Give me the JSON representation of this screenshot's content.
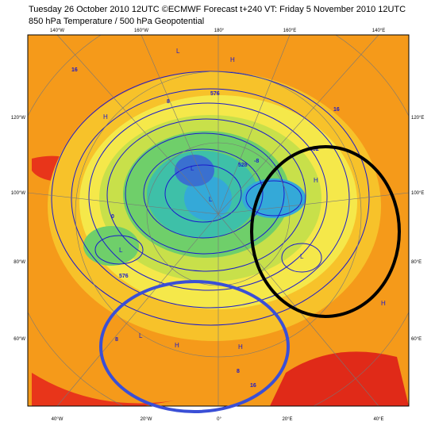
{
  "header": {
    "title": "Tuesday 26 October 2010 12UTC ©ECMWF Forecast t+240 VT: Friday 5 November 2010 12UTC",
    "subtitle": "850 hPa Temperature / 500 hPa Geopotential"
  },
  "map": {
    "top_labels": [
      "140°W",
      "160°W",
      "180°",
      "160°E",
      "140°E"
    ],
    "left_labels": [
      "120°W",
      "100°W",
      "80°W",
      "60°W"
    ],
    "right_labels": [
      "120°E",
      "100°E",
      "80°E",
      "60°E"
    ],
    "bottom_labels": [
      "40°W",
      "20°W",
      "0°",
      "20°E",
      "40°E"
    ],
    "contour_labels": [
      "576",
      "552",
      "528",
      "576",
      "16",
      "8",
      "-8",
      "0",
      "8",
      "16",
      "16",
      "8"
    ],
    "pressure_labels": [
      "L",
      "H",
      "L",
      "H",
      "L",
      "L",
      "H",
      "H",
      "L",
      "L",
      "H",
      "H"
    ]
  }
}
